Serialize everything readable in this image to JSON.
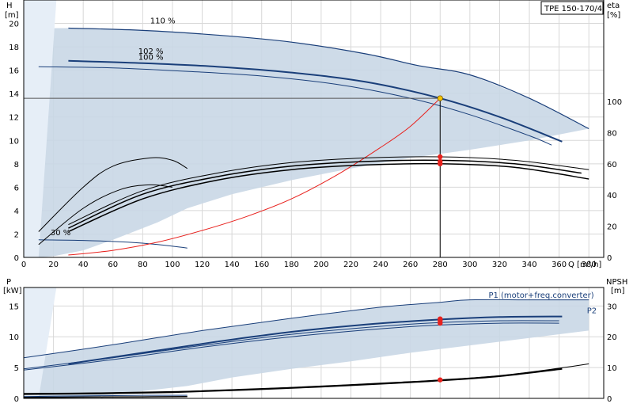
{
  "title_box": "TPE 150-170/4",
  "chart_data": [
    {
      "type": "line",
      "name_ref": "head-efficiency",
      "x_label": "Q [m³/h]",
      "y_left_label": "H",
      "y_left_unit": "[m]",
      "y_right_label": "eta",
      "y_right_unit": "[%]",
      "xlim": [
        0,
        390
      ],
      "ylim_left": [
        0,
        22
      ],
      "ylim_right": [
        0,
        165
      ],
      "x_ticks": [
        0,
        20,
        40,
        60,
        80,
        100,
        120,
        140,
        160,
        180,
        200,
        220,
        240,
        260,
        280,
        300,
        320,
        340,
        360,
        380
      ],
      "y_left_ticks": [
        0,
        2,
        4,
        6,
        8,
        10,
        12,
        14,
        16,
        18,
        20
      ],
      "y_right_ticks": [
        0,
        20,
        40,
        60,
        80,
        100
      ],
      "grid": true,
      "duty_point": {
        "q": 280,
        "h": 13.6
      },
      "speed_labels": [
        {
          "text": "110 %",
          "q": 85,
          "h": 20.0
        },
        {
          "text": "102 %",
          "q": 77,
          "h": 17.4
        },
        {
          "text": "100 %",
          "q": 77,
          "h": 16.9
        },
        {
          "text": "30 %",
          "q": 18,
          "h": 1.9
        }
      ],
      "series": [
        {
          "id": "h110",
          "color": "#1a3f7a",
          "width": 1.2,
          "axis": "left",
          "x": [
            30,
            80,
            130,
            180,
            230,
            265,
            300,
            340,
            380
          ],
          "y": [
            19.6,
            19.4,
            19.0,
            18.4,
            17.4,
            16.4,
            15.6,
            13.6,
            11.0
          ]
        },
        {
          "id": "h102",
          "color": "#1a3f7a",
          "width": 2,
          "axis": "left",
          "x": [
            30,
            80,
            130,
            180,
            230,
            280,
            320,
            362
          ],
          "y": [
            16.8,
            16.6,
            16.3,
            15.8,
            15.0,
            13.6,
            12.0,
            9.9
          ]
        },
        {
          "id": "h100",
          "color": "#1a3f7a",
          "width": 1,
          "axis": "left",
          "x": [
            10,
            60,
            110,
            160,
            210,
            260,
            300,
            340,
            355
          ],
          "y": [
            16.3,
            16.2,
            15.9,
            15.5,
            14.8,
            13.6,
            12.2,
            10.4,
            9.6
          ]
        },
        {
          "id": "h30",
          "color": "#1a3f7a",
          "width": 1,
          "axis": "left",
          "x": [
            10,
            40,
            70,
            90,
            110
          ],
          "y": [
            1.5,
            1.45,
            1.3,
            1.1,
            0.8
          ]
        },
        {
          "id": "system",
          "color": "#e8211d",
          "width": 1,
          "axis": "left",
          "x": [
            30,
            60,
            90,
            120,
            150,
            180,
            210,
            240,
            260,
            280
          ],
          "y": [
            0.2,
            0.6,
            1.3,
            2.3,
            3.5,
            5.0,
            7.0,
            9.4,
            11.2,
            13.6
          ]
        },
        {
          "id": "eta1",
          "color": "#000000",
          "width": 1.5,
          "axis": "left",
          "x": [
            30,
            80,
            130,
            180,
            230,
            280,
            330,
            380
          ],
          "y": [
            2.2,
            5.0,
            6.6,
            7.5,
            7.9,
            8.0,
            7.7,
            6.7
          ]
        },
        {
          "id": "eta2",
          "color": "#000000",
          "width": 1.5,
          "axis": "left",
          "x": [
            30,
            80,
            130,
            180,
            230,
            280,
            330,
            375
          ],
          "y": [
            2.5,
            5.4,
            6.9,
            7.8,
            8.2,
            8.3,
            8.0,
            7.2
          ]
        },
        {
          "id": "eta3",
          "color": "#000000",
          "width": 1,
          "axis": "left",
          "x": [
            30,
            80,
            130,
            180,
            230,
            280,
            330,
            380
          ],
          "y": [
            2.8,
            5.7,
            7.2,
            8.1,
            8.5,
            8.6,
            8.3,
            7.5
          ]
        },
        {
          "id": "eta4",
          "color": "#000000",
          "width": 1,
          "axis": "left",
          "x": [
            10,
            40,
            60,
            85,
            100,
            110
          ],
          "y": [
            2.2,
            6.0,
            7.8,
            8.5,
            8.3,
            7.6
          ]
        },
        {
          "id": "eta5",
          "color": "#000000",
          "width": 1,
          "axis": "left",
          "x": [
            10,
            40,
            65,
            85,
            100
          ],
          "y": [
            1.1,
            4.2,
            5.8,
            6.2,
            6.0
          ]
        }
      ],
      "band": {
        "upper_x": [
          0,
          30,
          80,
          130,
          180,
          230,
          265,
          300,
          340,
          380
        ],
        "upper_y": [
          19.6,
          19.6,
          19.4,
          19.0,
          18.4,
          17.4,
          16.4,
          15.6,
          13.6,
          11.0
        ],
        "lower_x": [
          380,
          340,
          300,
          260,
          220,
          180,
          140,
          110,
          90,
          60,
          40,
          20,
          10,
          0
        ],
        "lower_y": [
          11.0,
          10.0,
          9.2,
          8.5,
          7.6,
          6.6,
          5.4,
          4.2,
          3.0,
          1.5,
          0.6,
          0.1,
          0.0,
          0.0
        ]
      },
      "markers": [
        {
          "q": 280,
          "h": 13.6,
          "color": "#f5c400"
        },
        {
          "q": 280,
          "h": 8.6,
          "color": "#e8211d"
        },
        {
          "q": 280,
          "h": 8.2,
          "color": "#e8211d"
        },
        {
          "q": 280,
          "h": 8.0,
          "color": "#e8211d"
        }
      ]
    },
    {
      "type": "line",
      "name_ref": "power-npsh",
      "y_left_label": "P",
      "y_left_unit": "[kW]",
      "y_right_label": "NPSH",
      "y_right_unit": "[m]",
      "xlim": [
        0,
        390
      ],
      "ylim_left": [
        0,
        18
      ],
      "ylim_right": [
        0,
        36
      ],
      "x_ticks": [
        0,
        20,
        40,
        60,
        80,
        100,
        120,
        140,
        160,
        180,
        200,
        220,
        240,
        260,
        280,
        300,
        320,
        340,
        360,
        380
      ],
      "y_left_ticks": [
        0,
        5,
        10,
        15
      ],
      "y_right_ticks": [
        0,
        10,
        20,
        30
      ],
      "grid": true,
      "legend_labels": [
        {
          "text": "P1 (motor+freq.converter)",
          "q": 348,
          "p": 16.3
        },
        {
          "text": "P2",
          "q": 382,
          "p": 13.8
        }
      ],
      "series": [
        {
          "id": "p110",
          "color": "#1a3f7a",
          "width": 1,
          "axis": "left",
          "x": [
            0,
            60,
            120,
            180,
            240,
            280,
            300,
            340,
            380
          ],
          "y": [
            6.6,
            8.7,
            11.0,
            13.0,
            14.8,
            15.6,
            16.0,
            16.0,
            16.0
          ]
        },
        {
          "id": "p1a",
          "color": "#1a3f7a",
          "width": 2,
          "axis": "left",
          "x": [
            30,
            80,
            130,
            180,
            230,
            280,
            320,
            362
          ],
          "y": [
            5.6,
            7.4,
            9.2,
            10.8,
            12.0,
            12.8,
            13.2,
            13.3
          ]
        },
        {
          "id": "p1b",
          "color": "#1a3f7a",
          "width": 1,
          "axis": "left",
          "x": [
            0,
            60,
            120,
            180,
            240,
            280,
            320,
            360
          ],
          "y": [
            4.8,
            6.6,
            8.6,
            10.4,
            11.7,
            12.3,
            12.6,
            12.6
          ]
        },
        {
          "id": "p1c",
          "color": "#1a3f7a",
          "width": 1,
          "axis": "left",
          "x": [
            0,
            60,
            120,
            180,
            240,
            280,
            320,
            360
          ],
          "y": [
            4.6,
            6.3,
            8.3,
            10.0,
            11.3,
            11.9,
            12.2,
            12.2
          ]
        },
        {
          "id": "p30",
          "color": "#1a3f7a",
          "width": 1,
          "axis": "left",
          "x": [
            0,
            40,
            80,
            110
          ],
          "y": [
            0.3,
            0.4,
            0.5,
            0.5
          ]
        },
        {
          "id": "npsh",
          "color": "#000000",
          "width": 1,
          "axis": "right",
          "x": [
            0,
            50,
            100,
            150,
            200,
            250,
            280,
            320,
            360,
            380
          ],
          "y": [
            1.6,
            1.8,
            2.2,
            3.0,
            4.0,
            5.2,
            6.0,
            7.4,
            9.8,
            11.2
          ]
        },
        {
          "id": "npsh2",
          "color": "#000000",
          "width": 2,
          "axis": "right",
          "x": [
            0,
            50,
            100,
            150,
            200,
            250,
            280,
            320,
            362
          ],
          "y": [
            1.4,
            1.6,
            2.0,
            2.8,
            3.8,
            5.0,
            5.8,
            7.2,
            9.6
          ]
        },
        {
          "id": "npsh30",
          "color": "#000000",
          "width": 1.5,
          "axis": "right",
          "x": [
            0,
            40,
            80,
            110
          ],
          "y": [
            0.3,
            0.4,
            0.5,
            0.6
          ]
        }
      ],
      "band": {
        "upper_x": [
          0,
          60,
          120,
          180,
          240,
          280,
          300,
          380
        ],
        "upper_y": [
          6.6,
          8.7,
          11.0,
          13.0,
          14.8,
          15.6,
          16.0,
          16.0
        ],
        "lower_x": [
          380,
          340,
          300,
          260,
          220,
          180,
          140,
          110,
          80,
          60,
          40,
          20,
          10,
          0
        ],
        "lower_y": [
          11.0,
          9.8,
          8.6,
          7.4,
          6.0,
          4.8,
          3.4,
          2.0,
          1.2,
          0.6,
          0.3,
          0.1,
          0.0,
          0.0
        ]
      },
      "markers": [
        {
          "q": 280,
          "p": 12.9,
          "color": "#e8211d"
        },
        {
          "q": 280,
          "p": 12.6,
          "color": "#e8211d"
        },
        {
          "q": 280,
          "p": 12.2,
          "color": "#e8211d"
        },
        {
          "q": 280,
          "npsh": 6.0,
          "color": "#e8211d"
        }
      ]
    }
  ]
}
